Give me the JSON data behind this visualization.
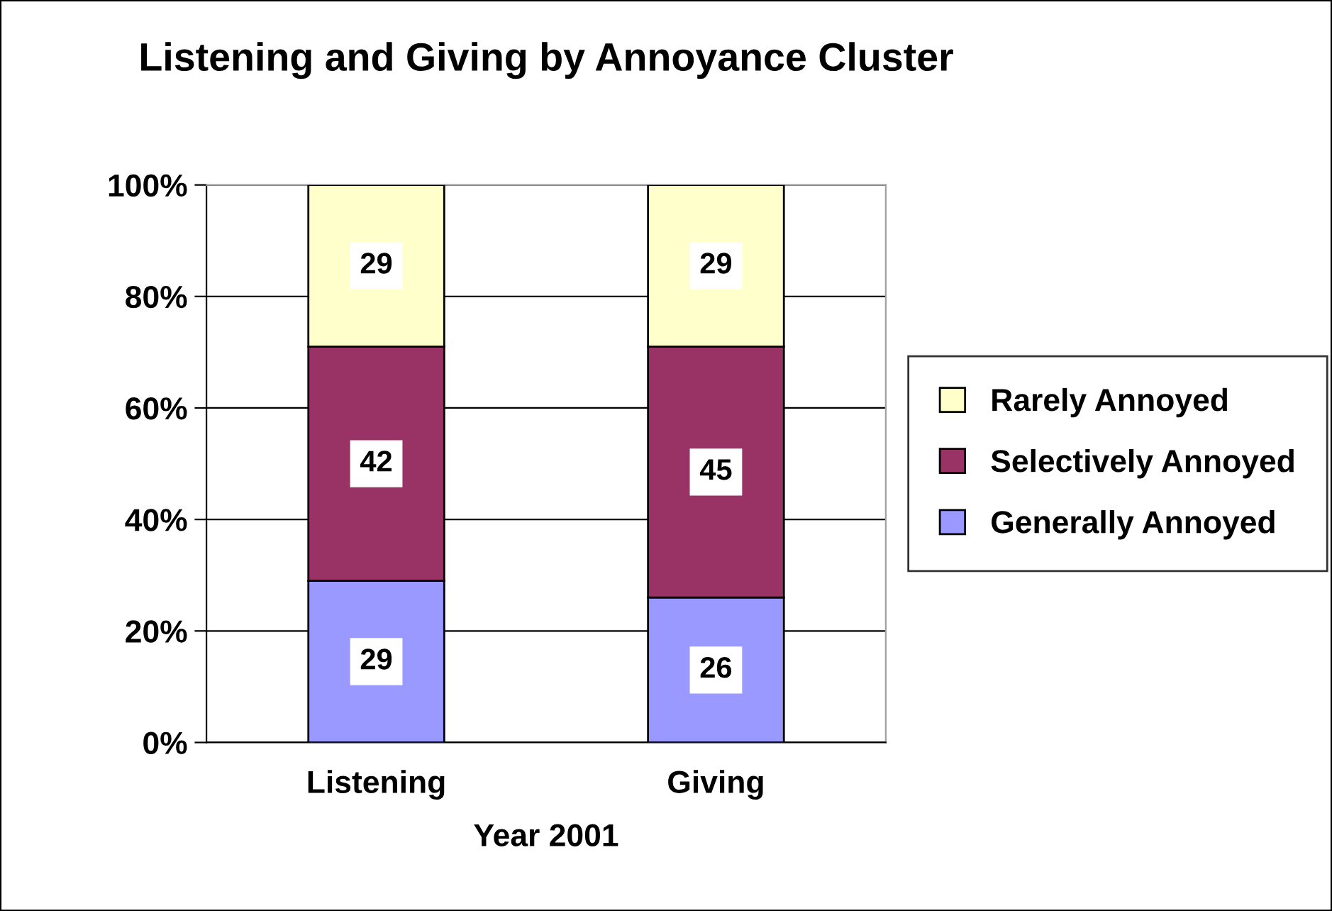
{
  "chart_data": {
    "type": "bar",
    "title": "Listening and Giving by Annoyance Cluster",
    "xlabel": "Year 2001",
    "categories": [
      "Listening",
      "Giving"
    ],
    "stacked": true,
    "series": [
      {
        "name": "Generally Annoyed",
        "color": "#9999ff",
        "values": [
          29,
          26
        ]
      },
      {
        "name": "Selectively Annoyed",
        "color": "#993366",
        "values": [
          42,
          45
        ]
      },
      {
        "name": "Rarely Annoyed",
        "color": "#ffffcc",
        "values": [
          29,
          29
        ]
      }
    ],
    "ylim": [
      0,
      100
    ],
    "yticks": [
      {
        "value": 0,
        "label": "0%"
      },
      {
        "value": 20,
        "label": "20%"
      },
      {
        "value": 40,
        "label": "40%"
      },
      {
        "value": 60,
        "label": "60%"
      },
      {
        "value": 80,
        "label": "80%"
      },
      {
        "value": 100,
        "label": "100%"
      }
    ],
    "grid": "y",
    "legend": "right",
    "data_labels": true
  }
}
